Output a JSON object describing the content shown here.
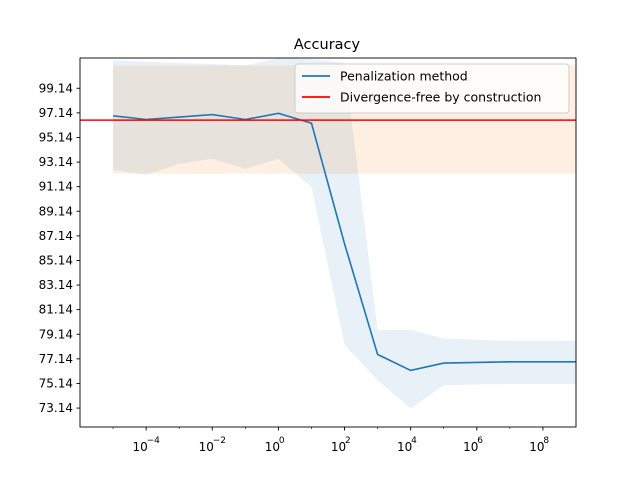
{
  "chart_data": {
    "type": "line",
    "title": "Accuracy",
    "xscale": "log",
    "xlim_log10": [
      -6,
      9
    ],
    "ylim": [
      71.6,
      101.6
    ],
    "x_ticks": [
      {
        "exp": -4,
        "label": "−4"
      },
      {
        "exp": -2,
        "label": "−2"
      },
      {
        "exp": 0,
        "label": "0"
      },
      {
        "exp": 2,
        "label": "2"
      },
      {
        "exp": 4,
        "label": "4"
      },
      {
        "exp": 6,
        "label": "6"
      },
      {
        "exp": 8,
        "label": "8"
      }
    ],
    "y_ticks": [
      73.14,
      75.14,
      77.14,
      79.14,
      81.14,
      83.14,
      85.14,
      87.14,
      89.14,
      91.14,
      93.14,
      95.14,
      97.14,
      99.14
    ],
    "legend_position": "upper right",
    "series": [
      {
        "name": "Penalization method",
        "color": "#1f77b4",
        "band_color": "#1f77b4",
        "x_log10": [
          -5,
          -4,
          -3,
          -2,
          -1,
          0,
          1,
          2,
          3,
          4,
          5,
          7,
          9
        ],
        "y": [
          96.9,
          96.6,
          96.8,
          97.0,
          96.6,
          97.1,
          96.3,
          86.5,
          77.5,
          76.2,
          76.8,
          76.9,
          76.9
        ],
        "lower": [
          92.5,
          92.1,
          93.0,
          93.4,
          92.6,
          93.4,
          91.1,
          78.3,
          75.4,
          73.1,
          75.0,
          75.1,
          75.1
        ],
        "upper": [
          101.4,
          101.3,
          101.2,
          101.1,
          101.0,
          101.6,
          101.5,
          101.2,
          79.5,
          79.5,
          78.8,
          78.6,
          78.6
        ]
      },
      {
        "name": "Divergence-free by construction",
        "color": "#ff0000",
        "band_color": "#ff7f0e",
        "y": 96.55,
        "lower": 92.2,
        "upper": 101.0
      }
    ]
  }
}
